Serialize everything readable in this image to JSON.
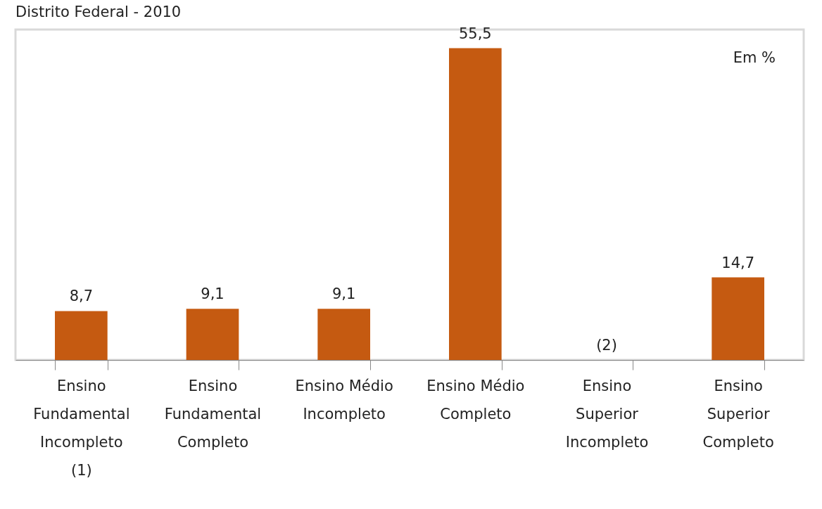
{
  "chart_data": {
    "type": "bar",
    "title": "Distrito Federal - 2010",
    "categories": [
      "Ensino Fundamental Incompleto (1)",
      "Ensino Fundamental Completo",
      "Ensino Médio Incompleto",
      "Ensino Médio Completo",
      "Ensino Superior Incompleto",
      "Ensino Superior Completo"
    ],
    "values": [
      8.7,
      9.1,
      9.1,
      55.5,
      null,
      14.7
    ],
    "value_labels": [
      "8,7",
      "9,1",
      "9,1",
      "55,5",
      "(2)",
      "14,7"
    ],
    "color": "#c55a11",
    "annotations": [
      "Em %"
    ]
  }
}
